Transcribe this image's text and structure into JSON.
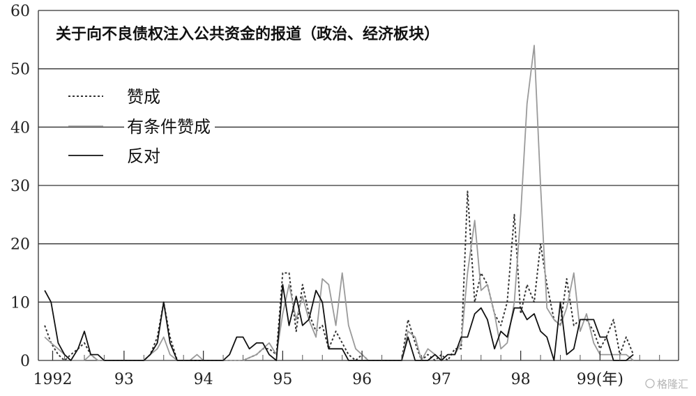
{
  "chart_data": {
    "type": "line",
    "title": "关于向不良债权注入公共资金的报道（政治、经济板块）",
    "ylim": [
      0,
      60
    ],
    "yticks": [
      0,
      10,
      20,
      30,
      40,
      50,
      60
    ],
    "x_range": [
      1991.92,
      1999.99
    ],
    "xticks": [
      {
        "x": 1992.1,
        "label": "1992"
      },
      {
        "x": 1993.0,
        "label": "93"
      },
      {
        "x": 1994.0,
        "label": "94"
      },
      {
        "x": 1995.0,
        "label": "95"
      },
      {
        "x": 1996.0,
        "label": "96"
      },
      {
        "x": 1997.0,
        "label": "97"
      },
      {
        "x": 1998.0,
        "label": "98"
      },
      {
        "x": 1999.0,
        "label": "99(年)"
      }
    ],
    "grid": "horizontal",
    "legend_placement": "upper-left",
    "series": [
      {
        "name": "赞成",
        "style": "dotted",
        "color": "#333333",
        "points": [
          [
            1992.0,
            6
          ],
          [
            1992.08,
            3
          ],
          [
            1992.17,
            1
          ],
          [
            1992.25,
            0
          ],
          [
            1992.33,
            1
          ],
          [
            1992.42,
            2
          ],
          [
            1992.5,
            3
          ],
          [
            1992.58,
            1
          ],
          [
            1992.67,
            0
          ],
          [
            1992.75,
            0
          ],
          [
            1993.0,
            0
          ],
          [
            1993.25,
            0
          ],
          [
            1993.33,
            1
          ],
          [
            1993.42,
            4
          ],
          [
            1993.5,
            10
          ],
          [
            1993.58,
            4
          ],
          [
            1993.67,
            0
          ],
          [
            1994.0,
            0
          ],
          [
            1994.5,
            0
          ],
          [
            1994.67,
            1
          ],
          [
            1994.75,
            2
          ],
          [
            1994.83,
            2
          ],
          [
            1994.92,
            1
          ],
          [
            1995.0,
            15
          ],
          [
            1995.08,
            15
          ],
          [
            1995.17,
            5
          ],
          [
            1995.25,
            13
          ],
          [
            1995.33,
            8
          ],
          [
            1995.42,
            5
          ],
          [
            1995.5,
            6
          ],
          [
            1995.58,
            2
          ],
          [
            1995.67,
            5
          ],
          [
            1995.75,
            3
          ],
          [
            1995.83,
            1
          ],
          [
            1995.92,
            0
          ],
          [
            1996.0,
            1
          ],
          [
            1996.08,
            0
          ],
          [
            1996.5,
            0
          ],
          [
            1996.58,
            7
          ],
          [
            1996.67,
            3
          ],
          [
            1996.75,
            0
          ],
          [
            1996.83,
            1
          ],
          [
            1996.92,
            0
          ],
          [
            1997.0,
            1
          ],
          [
            1997.08,
            0
          ],
          [
            1997.17,
            2
          ],
          [
            1997.25,
            2
          ],
          [
            1997.33,
            29
          ],
          [
            1997.42,
            10
          ],
          [
            1997.5,
            15
          ],
          [
            1997.58,
            13
          ],
          [
            1997.67,
            8
          ],
          [
            1997.75,
            6
          ],
          [
            1997.83,
            10
          ],
          [
            1997.92,
            25
          ],
          [
            1998.0,
            8
          ],
          [
            1998.08,
            13
          ],
          [
            1998.17,
            10
          ],
          [
            1998.25,
            20
          ],
          [
            1998.33,
            13
          ],
          [
            1998.42,
            7
          ],
          [
            1998.5,
            6
          ],
          [
            1998.58,
            14
          ],
          [
            1998.67,
            6
          ],
          [
            1998.75,
            7
          ],
          [
            1998.83,
            7
          ],
          [
            1998.92,
            5
          ],
          [
            1999.0,
            2
          ],
          [
            1999.08,
            4
          ],
          [
            1999.17,
            7
          ],
          [
            1999.25,
            1
          ],
          [
            1999.33,
            4
          ],
          [
            1999.42,
            1
          ]
        ]
      },
      {
        "name": "有条件赞成",
        "style": "solid",
        "color": "#9a9a9a",
        "points": [
          [
            1992.0,
            4
          ],
          [
            1992.08,
            3
          ],
          [
            1992.17,
            2
          ],
          [
            1992.25,
            1
          ],
          [
            1992.33,
            0
          ],
          [
            1992.5,
            0
          ],
          [
            1992.58,
            1
          ],
          [
            1992.67,
            0
          ],
          [
            1993.0,
            0
          ],
          [
            1993.25,
            0
          ],
          [
            1993.33,
            1
          ],
          [
            1993.42,
            2
          ],
          [
            1993.5,
            4
          ],
          [
            1993.58,
            1
          ],
          [
            1993.67,
            0
          ],
          [
            1993.83,
            0
          ],
          [
            1993.92,
            1
          ],
          [
            1994.0,
            0
          ],
          [
            1994.5,
            0
          ],
          [
            1994.67,
            1
          ],
          [
            1994.75,
            2
          ],
          [
            1994.83,
            3
          ],
          [
            1994.92,
            1
          ],
          [
            1995.0,
            8
          ],
          [
            1995.08,
            13
          ],
          [
            1995.17,
            7
          ],
          [
            1995.25,
            11
          ],
          [
            1995.33,
            7
          ],
          [
            1995.42,
            4
          ],
          [
            1995.5,
            14
          ],
          [
            1995.58,
            13
          ],
          [
            1995.67,
            6
          ],
          [
            1995.75,
            15
          ],
          [
            1995.83,
            6
          ],
          [
            1995.92,
            2
          ],
          [
            1996.0,
            1
          ],
          [
            1996.08,
            0
          ],
          [
            1996.5,
            0
          ],
          [
            1996.58,
            5
          ],
          [
            1996.67,
            4
          ],
          [
            1996.75,
            0
          ],
          [
            1996.83,
            2
          ],
          [
            1996.92,
            1
          ],
          [
            1997.0,
            0
          ],
          [
            1997.08,
            1
          ],
          [
            1997.17,
            1
          ],
          [
            1997.25,
            3
          ],
          [
            1997.33,
            15
          ],
          [
            1997.42,
            24
          ],
          [
            1997.5,
            12
          ],
          [
            1997.58,
            13
          ],
          [
            1997.67,
            8
          ],
          [
            1997.75,
            2
          ],
          [
            1997.83,
            3
          ],
          [
            1997.92,
            10
          ],
          [
            1998.0,
            25
          ],
          [
            1998.08,
            44
          ],
          [
            1998.17,
            54
          ],
          [
            1998.25,
            30
          ],
          [
            1998.33,
            9
          ],
          [
            1998.42,
            7
          ],
          [
            1998.5,
            6
          ],
          [
            1998.58,
            9
          ],
          [
            1998.67,
            15
          ],
          [
            1998.75,
            5
          ],
          [
            1998.83,
            8
          ],
          [
            1998.92,
            3
          ],
          [
            1999.0,
            1
          ],
          [
            1999.08,
            1
          ],
          [
            1999.17,
            1
          ],
          [
            1999.25,
            1
          ],
          [
            1999.33,
            1
          ],
          [
            1999.42,
            0
          ]
        ]
      },
      {
        "name": "反对",
        "style": "solid",
        "color": "#111111",
        "points": [
          [
            1992.0,
            12
          ],
          [
            1992.08,
            10
          ],
          [
            1992.17,
            3
          ],
          [
            1992.25,
            1
          ],
          [
            1992.33,
            0
          ],
          [
            1992.42,
            2
          ],
          [
            1992.5,
            5
          ],
          [
            1992.58,
            1
          ],
          [
            1992.67,
            1
          ],
          [
            1992.75,
            0
          ],
          [
            1993.0,
            0
          ],
          [
            1993.25,
            0
          ],
          [
            1993.33,
            1
          ],
          [
            1993.42,
            3
          ],
          [
            1993.5,
            10
          ],
          [
            1993.58,
            3
          ],
          [
            1993.67,
            0
          ],
          [
            1994.0,
            0
          ],
          [
            1994.25,
            0
          ],
          [
            1994.33,
            1
          ],
          [
            1994.42,
            4
          ],
          [
            1994.5,
            4
          ],
          [
            1994.58,
            2
          ],
          [
            1994.67,
            3
          ],
          [
            1994.75,
            3
          ],
          [
            1994.83,
            1
          ],
          [
            1994.92,
            0
          ],
          [
            1995.0,
            13
          ],
          [
            1995.08,
            6
          ],
          [
            1995.17,
            11
          ],
          [
            1995.25,
            6
          ],
          [
            1995.33,
            7
          ],
          [
            1995.42,
            12
          ],
          [
            1995.5,
            10
          ],
          [
            1995.58,
            2
          ],
          [
            1995.67,
            2
          ],
          [
            1995.75,
            2
          ],
          [
            1995.83,
            0
          ],
          [
            1996.0,
            0
          ],
          [
            1996.5,
            0
          ],
          [
            1996.58,
            4
          ],
          [
            1996.67,
            0
          ],
          [
            1996.75,
            0
          ],
          [
            1996.83,
            0
          ],
          [
            1996.92,
            1
          ],
          [
            1997.0,
            0
          ],
          [
            1997.08,
            1
          ],
          [
            1997.17,
            1
          ],
          [
            1997.25,
            4
          ],
          [
            1997.33,
            4
          ],
          [
            1997.42,
            8
          ],
          [
            1997.5,
            9
          ],
          [
            1997.58,
            7
          ],
          [
            1997.67,
            2
          ],
          [
            1997.75,
            5
          ],
          [
            1997.83,
            4
          ],
          [
            1997.92,
            9
          ],
          [
            1998.0,
            9
          ],
          [
            1998.08,
            7
          ],
          [
            1998.17,
            8
          ],
          [
            1998.25,
            5
          ],
          [
            1998.33,
            4
          ],
          [
            1998.42,
            0
          ],
          [
            1998.5,
            10
          ],
          [
            1998.58,
            1
          ],
          [
            1998.67,
            2
          ],
          [
            1998.75,
            7
          ],
          [
            1998.83,
            7
          ],
          [
            1998.92,
            7
          ],
          [
            1999.0,
            4
          ],
          [
            1999.08,
            4
          ],
          [
            1999.17,
            0
          ],
          [
            1999.25,
            0
          ],
          [
            1999.33,
            0
          ],
          [
            1999.42,
            1
          ]
        ]
      }
    ]
  },
  "watermark": "格隆汇"
}
